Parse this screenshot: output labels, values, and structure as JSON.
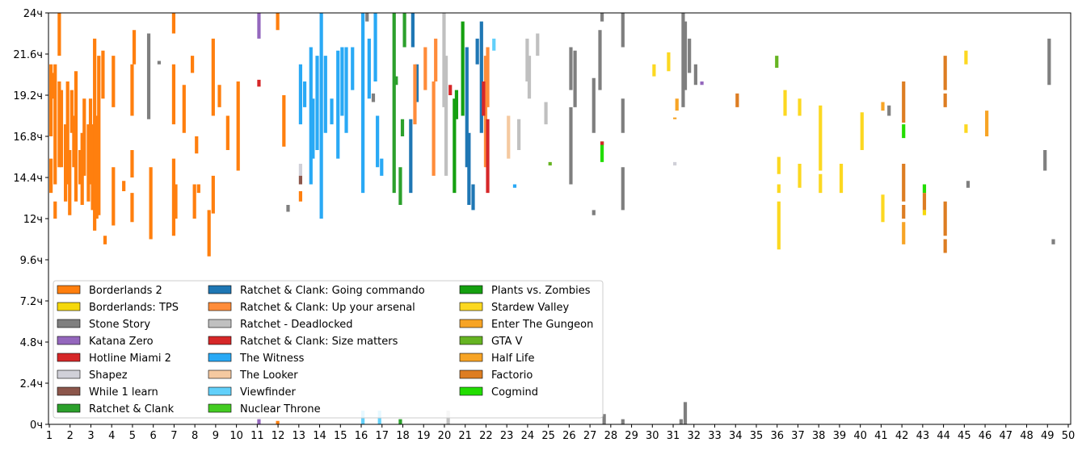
{
  "chart_data": {
    "type": "bar",
    "subtype": "floating-range",
    "title": "",
    "xlabel": "",
    "ylabel": "",
    "xlim": [
      1,
      50
    ],
    "ylim": [
      0,
      24
    ],
    "x_ticks": [
      "1",
      "2",
      "3",
      "4",
      "5",
      "6",
      "7",
      "8",
      "9",
      "10",
      "11",
      "12",
      "13",
      "14",
      "15",
      "16",
      "17",
      "18",
      "19",
      "20",
      "21",
      "22",
      "23",
      "24",
      "25",
      "26",
      "27",
      "28",
      "29",
      "30",
      "31",
      "32",
      "33",
      "34",
      "35",
      "36",
      "37",
      "38",
      "39",
      "40",
      "41",
      "42",
      "43",
      "44",
      "45",
      "46",
      "47",
      "48",
      "49",
      "50"
    ],
    "y_ticks": [
      {
        "value": 0,
        "label": "0ч"
      },
      {
        "value": 2.4,
        "label": "2.4ч"
      },
      {
        "value": 4.8,
        "label": "4.8ч"
      },
      {
        "value": 7.2,
        "label": "7.2ч"
      },
      {
        "value": 9.6,
        "label": "9.6ч"
      },
      {
        "value": 12,
        "label": "12ч"
      },
      {
        "value": 14.4,
        "label": "14.4ч"
      },
      {
        "value": 16.8,
        "label": "16.8ч"
      },
      {
        "value": 19.2,
        "label": "19.2ч"
      },
      {
        "value": 21.6,
        "label": "21.6ч"
      },
      {
        "value": 24,
        "label": "24ч"
      }
    ],
    "grid": false,
    "legend_position": "bottom-left",
    "series": [
      {
        "name": "Borderlands 2",
        "color": "#ff7f0e"
      },
      {
        "name": "Borderlands: TPS",
        "color": "#f5d80c"
      },
      {
        "name": "Stone Story",
        "color": "#7f7f7f"
      },
      {
        "name": "Katana Zero",
        "color": "#9467bd"
      },
      {
        "name": "Hotline Miami 2",
        "color": "#d62728"
      },
      {
        "name": "Shapez",
        "color": "#d0d0d8"
      },
      {
        "name": "While 1 learn",
        "color": "#8c564b"
      },
      {
        "name": "Ratchet & Clank",
        "color": "#2ca02c"
      },
      {
        "name": "Ratchet & Clank: Going commando",
        "color": "#1f77b4"
      },
      {
        "name": "Ratchet & Clank: Up your arsenal",
        "color": "#ff8c3a"
      },
      {
        "name": "Ratchet - Deadlocked",
        "color": "#c0c0c0"
      },
      {
        "name": "Ratchet & Clank: Size matters",
        "color": "#d62728"
      },
      {
        "name": "The Witness",
        "color": "#29a9f5"
      },
      {
        "name": "The Looker",
        "color": "#f5c9a0"
      },
      {
        "name": "Viewfinder",
        "color": "#62d0fa"
      },
      {
        "name": "Nuclear Throne",
        "color": "#44cc22"
      },
      {
        "name": "Plants vs. Zombies",
        "color": "#15a010"
      },
      {
        "name": "Stardew Valley",
        "color": "#fcd821"
      },
      {
        "name": "Enter The Gungeon",
        "color": "#f7a425"
      },
      {
        "name": "GTA V",
        "color": "#66b422"
      },
      {
        "name": "Half Life",
        "color": "#f7a425"
      },
      {
        "name": "Factorio",
        "color": "#dd7d22"
      },
      {
        "name": "Cogmind",
        "color": "#22dd00"
      }
    ],
    "sessions_format": "[day, start_hour, end_hour, series_index]",
    "sessions": [
      [
        1.0,
        16.8,
        21,
        0
      ],
      [
        1.0,
        13.5,
        15.5,
        0
      ],
      [
        1.1,
        19,
        20.5,
        0
      ],
      [
        1.2,
        14,
        21,
        0
      ],
      [
        1.2,
        12,
        13,
        0
      ],
      [
        1.4,
        21.5,
        24,
        0
      ],
      [
        1.4,
        15,
        20,
        0
      ],
      [
        1.5,
        15,
        19.5,
        0
      ],
      [
        1.7,
        13,
        17.5,
        0
      ],
      [
        1.8,
        14,
        20,
        0
      ],
      [
        1.9,
        12.2,
        16,
        0
      ],
      [
        2.0,
        17,
        19.5,
        0
      ],
      [
        2.1,
        15,
        18,
        0
      ],
      [
        2.2,
        13,
        20.6,
        0
      ],
      [
        2.4,
        14,
        16,
        0
      ],
      [
        2.5,
        12.8,
        17,
        0
      ],
      [
        2.6,
        14.5,
        19,
        0
      ],
      [
        2.8,
        13,
        17.5,
        0
      ],
      [
        2.9,
        14,
        19,
        0
      ],
      [
        3.0,
        12.5,
        17.5,
        0
      ],
      [
        3.1,
        11.3,
        22.5,
        0
      ],
      [
        3.2,
        12,
        18,
        0
      ],
      [
        3.3,
        12.2,
        21.5,
        0
      ],
      [
        3.5,
        19,
        21.8,
        0
      ],
      [
        3.6,
        10.5,
        11,
        0
      ],
      [
        4.0,
        18.5,
        21.5,
        0
      ],
      [
        4.0,
        11.6,
        15,
        0
      ],
      [
        4.5,
        13.6,
        14.2,
        0
      ],
      [
        4.9,
        14.4,
        16,
        0
      ],
      [
        4.9,
        18,
        21,
        0
      ],
      [
        4.9,
        11.8,
        13.5,
        0
      ],
      [
        5.0,
        21,
        23,
        0
      ],
      [
        5.8,
        10.8,
        15,
        0
      ],
      [
        5.7,
        17.8,
        22.8,
        2
      ],
      [
        6.2,
        21,
        21.2,
        2
      ],
      [
        6.9,
        22.8,
        24,
        0
      ],
      [
        6.9,
        17.5,
        21,
        0
      ],
      [
        6.9,
        11,
        15.5,
        0
      ],
      [
        7.0,
        12,
        14,
        0
      ],
      [
        7.4,
        17,
        19.8,
        0
      ],
      [
        7.8,
        20.5,
        21.5,
        0
      ],
      [
        8.0,
        15.8,
        16.8,
        0
      ],
      [
        8.1,
        13.5,
        14,
        0
      ],
      [
        7.9,
        12,
        14,
        0
      ],
      [
        8.6,
        9.8,
        12.5,
        0
      ],
      [
        8.8,
        12.3,
        14.5,
        0
      ],
      [
        8.8,
        18,
        22.5,
        0
      ],
      [
        9.1,
        18.5,
        19.8,
        0
      ],
      [
        9.5,
        16,
        18,
        0
      ],
      [
        10.0,
        14.8,
        20,
        0
      ],
      [
        11.0,
        22.5,
        24,
        3
      ],
      [
        11.0,
        19.7,
        20.1,
        4
      ],
      [
        11.0,
        0,
        0.3,
        3
      ],
      [
        11.9,
        23,
        24,
        0
      ],
      [
        11.9,
        0,
        0.2,
        0
      ],
      [
        12.2,
        16.2,
        19.2,
        0
      ],
      [
        12.4,
        12.4,
        12.8,
        2
      ],
      [
        13.0,
        14.5,
        15.2,
        5
      ],
      [
        13.0,
        14,
        14.5,
        6
      ],
      [
        13.0,
        13,
        13.6,
        0
      ],
      [
        13.0,
        17.5,
        21,
        12
      ],
      [
        13.2,
        18.5,
        20,
        12
      ],
      [
        13.5,
        14,
        22,
        12
      ],
      [
        13.6,
        15.5,
        19,
        12
      ],
      [
        13.8,
        16,
        21.5,
        12
      ],
      [
        14.0,
        12,
        24,
        12
      ],
      [
        14.2,
        17,
        21.5,
        12
      ],
      [
        14.5,
        17.5,
        19,
        12
      ],
      [
        14.8,
        15.5,
        21.8,
        12
      ],
      [
        15.0,
        18,
        22,
        12
      ],
      [
        15.2,
        17,
        22,
        12
      ],
      [
        15.5,
        19.5,
        22,
        12
      ],
      [
        16.0,
        13.5,
        24,
        12
      ],
      [
        16.3,
        19,
        22.5,
        12
      ],
      [
        16.6,
        20,
        24,
        12
      ],
      [
        16.7,
        15,
        18,
        12
      ],
      [
        16.9,
        14.5,
        15.5,
        12
      ],
      [
        16.0,
        0,
        0.8,
        14
      ],
      [
        16.8,
        0,
        0.8,
        14
      ],
      [
        16.2,
        23.5,
        24,
        2
      ],
      [
        16.5,
        18.8,
        19.3,
        2
      ],
      [
        17.5,
        13.5,
        24,
        7
      ],
      [
        17.6,
        19.8,
        20.3,
        7
      ],
      [
        17.8,
        12.8,
        15,
        7
      ],
      [
        17.9,
        16.8,
        17.8,
        7
      ],
      [
        18.0,
        22,
        24,
        7
      ],
      [
        17.8,
        0,
        0.3,
        7
      ],
      [
        18.3,
        13.5,
        17.8,
        8
      ],
      [
        18.4,
        22,
        24,
        8
      ],
      [
        18.6,
        18.8,
        21,
        8
      ],
      [
        18.5,
        17.5,
        21,
        9
      ],
      [
        19.0,
        19.5,
        22,
        9
      ],
      [
        19.4,
        14.5,
        20,
        9
      ],
      [
        19.5,
        20,
        22.5,
        9
      ],
      [
        19.9,
        18.5,
        24,
        10
      ],
      [
        20.0,
        14.5,
        21.5,
        10
      ],
      [
        20.1,
        0,
        0.8,
        10
      ],
      [
        20.2,
        19.2,
        19.8,
        11
      ],
      [
        20.4,
        13.5,
        19,
        16
      ],
      [
        20.5,
        17.8,
        19.5,
        16
      ],
      [
        20.8,
        18,
        23.5,
        16
      ],
      [
        21.0,
        15,
        22,
        8
      ],
      [
        21.1,
        12.8,
        17,
        8
      ],
      [
        21.3,
        12.5,
        14,
        8
      ],
      [
        21.5,
        21,
        22.5,
        8
      ],
      [
        21.7,
        17,
        23.5,
        8
      ],
      [
        21.9,
        15,
        21.5,
        9
      ],
      [
        22.0,
        18.5,
        22,
        9
      ],
      [
        22.0,
        13.5,
        17.8,
        11
      ],
      [
        21.8,
        18,
        20,
        4
      ],
      [
        22.3,
        21.8,
        22.5,
        14
      ],
      [
        23.3,
        13.8,
        14,
        12
      ],
      [
        23.0,
        15.5,
        18,
        13
      ],
      [
        23.5,
        16,
        17.8,
        10
      ],
      [
        23.9,
        20,
        22.5,
        10
      ],
      [
        24.0,
        19,
        21.5,
        10
      ],
      [
        24.4,
        21.5,
        22.8,
        10
      ],
      [
        24.8,
        17.5,
        18.8,
        10
      ],
      [
        25.0,
        15.1,
        15.3,
        19
      ],
      [
        26.0,
        14,
        18.5,
        2
      ],
      [
        26.0,
        19.5,
        22,
        2
      ],
      [
        26.2,
        18.5,
        21.8,
        2
      ],
      [
        27.1,
        17,
        20.2,
        2
      ],
      [
        27.4,
        19.5,
        23,
        2
      ],
      [
        27.5,
        23.5,
        24,
        2
      ],
      [
        27.5,
        15.3,
        16.5,
        22
      ],
      [
        27.5,
        16.3,
        16.5,
        4
      ],
      [
        28.5,
        12.5,
        15,
        2
      ],
      [
        28.5,
        17,
        19,
        2
      ],
      [
        28.5,
        22,
        24,
        2
      ],
      [
        27.1,
        12.2,
        12.5,
        2
      ],
      [
        27.6,
        0,
        0.6,
        2
      ],
      [
        28.5,
        0,
        0.3,
        2
      ],
      [
        30.0,
        20.3,
        21,
        17
      ],
      [
        30.7,
        20.6,
        21.7,
        17
      ],
      [
        31.1,
        18.3,
        19,
        18
      ],
      [
        31.0,
        17.8,
        17.9,
        18
      ],
      [
        31.4,
        18.5,
        24,
        2
      ],
      [
        31.5,
        19.5,
        23.5,
        2
      ],
      [
        31.7,
        20.5,
        22.5,
        2
      ],
      [
        32.0,
        19.8,
        21,
        2
      ],
      [
        31.3,
        0,
        0.3,
        2
      ],
      [
        31.5,
        0,
        1.3,
        2
      ],
      [
        31.0,
        15.1,
        15.3,
        5
      ],
      [
        32.3,
        19.8,
        20,
        3
      ],
      [
        34.0,
        18.5,
        19.3,
        21
      ],
      [
        35.9,
        20.8,
        21.5,
        19
      ],
      [
        36.0,
        10.2,
        13,
        17
      ],
      [
        36.0,
        13.5,
        14,
        17
      ],
      [
        36.0,
        14.6,
        15.6,
        17
      ],
      [
        36.3,
        18,
        19.5,
        17
      ],
      [
        37.0,
        18,
        19,
        17
      ],
      [
        37.0,
        13.8,
        15.2,
        17
      ],
      [
        38.0,
        13.5,
        14.6,
        17
      ],
      [
        38.0,
        14.8,
        18.6,
        17
      ],
      [
        39.0,
        13.5,
        15.2,
        17
      ],
      [
        40.0,
        16,
        18.2,
        17
      ],
      [
        41.0,
        11.8,
        13.4,
        17
      ],
      [
        41.0,
        18.3,
        18.8,
        18
      ],
      [
        41.3,
        18,
        18.6,
        2
      ],
      [
        42.0,
        17.6,
        20,
        21
      ],
      [
        42.0,
        16.7,
        17.5,
        22
      ],
      [
        42.0,
        13,
        15.2,
        21
      ],
      [
        42.0,
        12,
        12.8,
        21
      ],
      [
        42.0,
        10.5,
        11.8,
        18
      ],
      [
        43.0,
        13.5,
        14,
        22
      ],
      [
        43.0,
        12.5,
        13.5,
        21
      ],
      [
        43.0,
        12.2,
        12.5,
        1
      ],
      [
        44.0,
        19.5,
        21.5,
        21
      ],
      [
        44.0,
        18.5,
        19.3,
        21
      ],
      [
        44.0,
        11,
        13,
        21
      ],
      [
        44.0,
        10,
        10.8,
        21
      ],
      [
        45.0,
        21,
        21.8,
        17
      ],
      [
        45.0,
        17,
        17.5,
        17
      ],
      [
        45.1,
        13.8,
        14.2,
        2
      ],
      [
        46.0,
        16.8,
        18.3,
        18
      ],
      [
        48.8,
        14.8,
        16,
        2
      ],
      [
        49.0,
        19.8,
        22.5,
        2
      ],
      [
        49.2,
        10.5,
        10.8,
        2
      ]
    ]
  }
}
